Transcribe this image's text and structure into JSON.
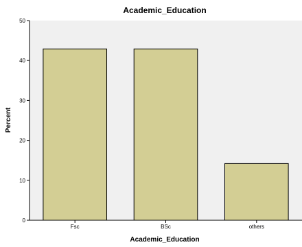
{
  "chart_data": {
    "type": "bar",
    "title": "Academic_Education",
    "xlabel": "Academic_Education",
    "ylabel": "Percent",
    "categories": [
      "Fsc",
      "BSc",
      "others"
    ],
    "values": [
      42.9,
      42.9,
      14.2
    ],
    "ylim": [
      0,
      50
    ],
    "yticks": [
      "0",
      "10",
      "20",
      "30",
      "40",
      "50"
    ],
    "grid": false,
    "legend": "none",
    "colors": {
      "plot_background": "#f0f0f0",
      "bar_fill": "#d3ce94",
      "bar_stroke": "#000000",
      "axis": "#000000"
    }
  }
}
